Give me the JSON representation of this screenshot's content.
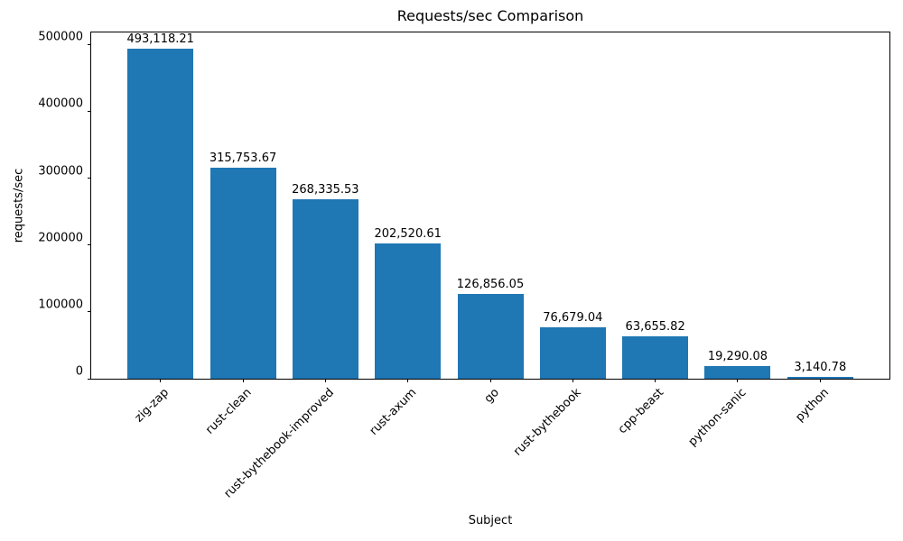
{
  "chart_data": {
    "type": "bar",
    "title": "Requests/sec Comparison",
    "xlabel": "Subject",
    "ylabel": "requests/sec",
    "categories": [
      "zig-zap",
      "rust-clean",
      "rust-bythebook-improved",
      "rust-axum",
      "go",
      "rust-bythebook",
      "cpp-beast",
      "python-sanic",
      "python"
    ],
    "values": [
      493118.21,
      315753.67,
      268335.53,
      202520.61,
      126856.05,
      76679.04,
      63655.82,
      19290.08,
      3140.78
    ],
    "value_labels": [
      "493,118.21",
      "315,753.67",
      "268,335.53",
      "202,520.61",
      "126,856.05",
      "76,679.04",
      "63,655.82",
      "19,290.08",
      "3,140.78"
    ],
    "yticks": [
      0,
      100000,
      200000,
      300000,
      400000,
      500000
    ],
    "ytick_labels": [
      "0",
      "100000",
      "200000",
      "300000",
      "400000",
      "500000"
    ],
    "ylim": [
      0,
      517774
    ],
    "bar_color": "#1f77b4",
    "grid": false,
    "legend_position": "none",
    "x_tick_rotation_deg": 45
  }
}
